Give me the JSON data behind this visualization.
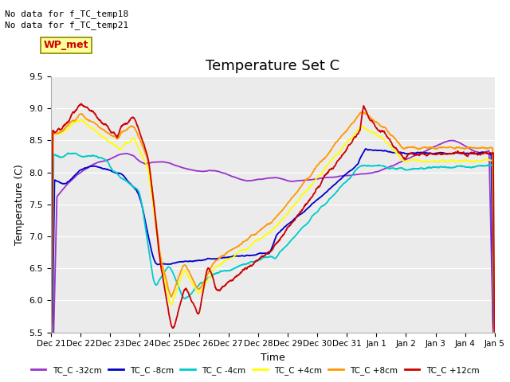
{
  "title": "Temperature Set C",
  "xlabel": "Time",
  "ylabel": "Temperature (C)",
  "ylim": [
    5.5,
    9.5
  ],
  "text_no_data": [
    "No data for f_TC_temp18",
    "No data for f_TC_temp21"
  ],
  "wp_met_label": "WP_met",
  "wp_met_color": "#cc0000",
  "wp_met_bg": "#ffff99",
  "legend_labels": [
    "TC_C -32cm",
    "TC_C -8cm",
    "TC_C -4cm",
    "TC_C +4cm",
    "TC_C +8cm",
    "TC_C +12cm"
  ],
  "legend_colors": [
    "#9933cc",
    "#0000cc",
    "#00cccc",
    "#ffff00",
    "#ff9900",
    "#cc0000"
  ],
  "x_tick_labels": [
    "Dec 21",
    "Dec 22",
    "Dec 23",
    "Dec 24",
    "Dec 25",
    "Dec 26",
    "Dec 27",
    "Dec 28",
    "Dec 29",
    "Dec 30",
    "Dec 31",
    "Jan 1",
    "Jan 2",
    "Jan 3",
    "Jan 4",
    "Jan 5"
  ],
  "plot_bg": "#ebebeb",
  "fig_bg": "#ffffff"
}
